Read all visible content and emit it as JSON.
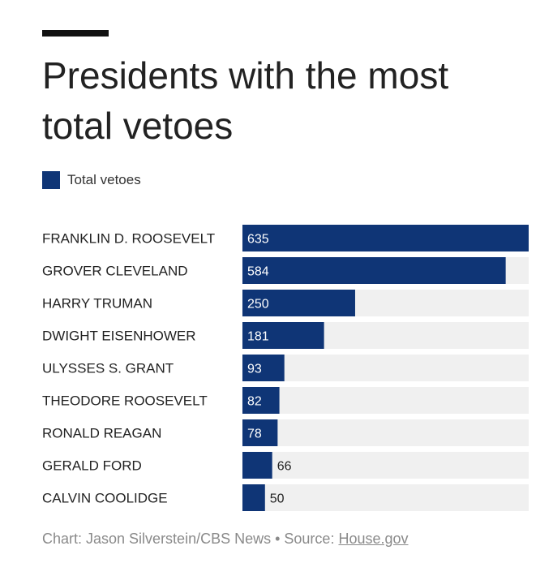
{
  "header": {
    "title": "Presidents with the most total vetoes"
  },
  "legend": {
    "label": "Total vetoes",
    "color": "#0f3576"
  },
  "colors": {
    "bar": "#0f3576",
    "track": "#f0f0f0",
    "value_inside": "#ffffff",
    "value_outside": "#222222"
  },
  "chart_data": {
    "type": "bar",
    "orientation": "horizontal",
    "title": "Presidents with the most total vetoes",
    "categories": [
      "FRANKLIN D. ROOSEVELT",
      "GROVER CLEVELAND",
      "HARRY TRUMAN",
      "DWIGHT EISENHOWER",
      "ULYSSES S. GRANT",
      "THEODORE ROOSEVELT",
      "RONALD REAGAN",
      "GERALD FORD",
      "CALVIN COOLIDGE"
    ],
    "series": [
      {
        "name": "Total vetoes",
        "values": [
          635,
          584,
          250,
          181,
          93,
          82,
          78,
          66,
          50
        ]
      }
    ],
    "xlim": [
      0,
      635
    ],
    "legend": "top-left",
    "grid": false
  },
  "footer": {
    "credit": "Chart: Jason Silverstein/CBS News • Source: ",
    "source_link": "House.gov"
  }
}
